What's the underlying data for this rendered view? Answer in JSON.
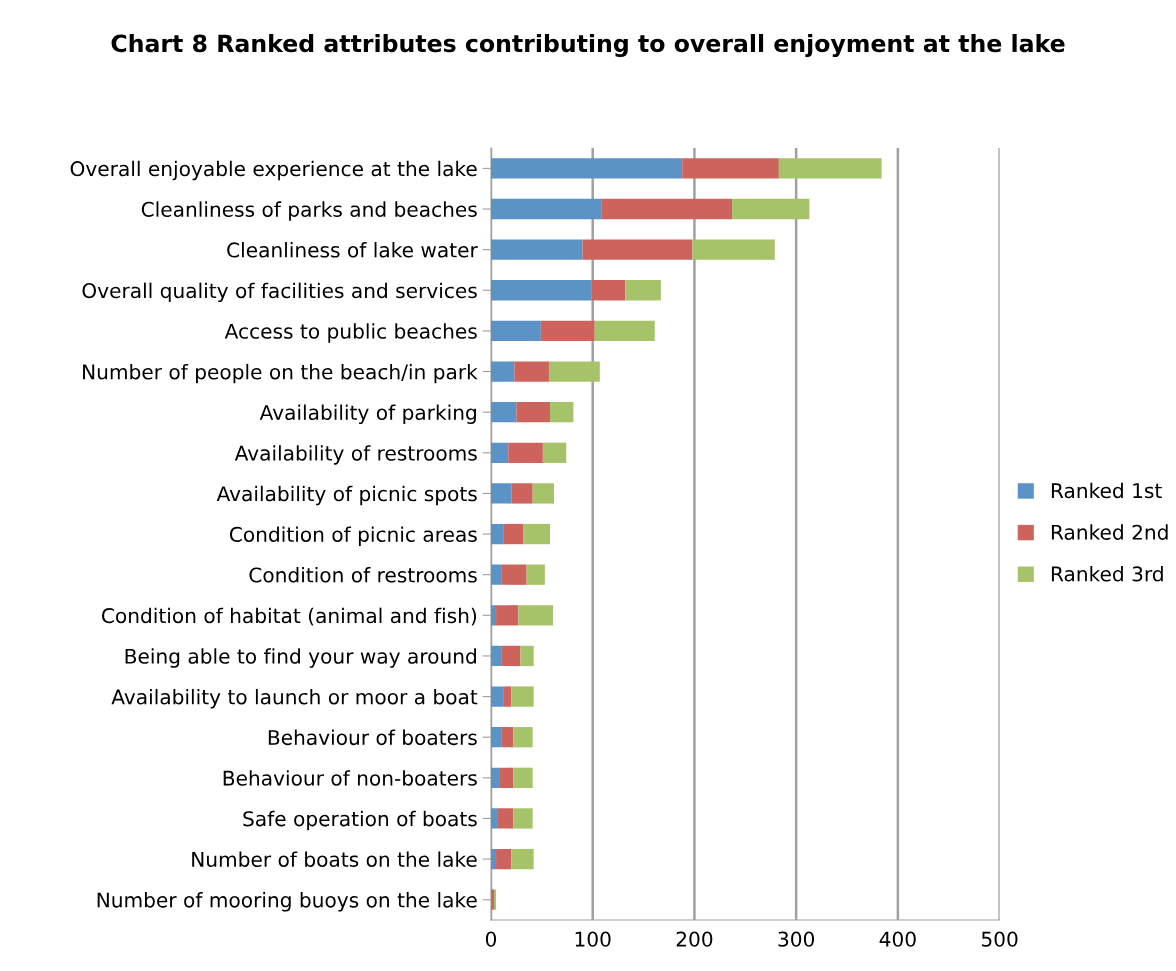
{
  "chart_data": {
    "type": "bar",
    "orientation": "horizontal",
    "stacked": true,
    "title": "Chart 8 Ranked attributes contributing to overall enjoyment at the lake",
    "categories": [
      "Overall enjoyable experience at the lake",
      "Cleanliness of parks and beaches",
      "Cleanliness of lake water",
      "Overall quality of facilities and services",
      "Access to public beaches",
      "Number of people on the beach/in park",
      "Availability of parking",
      "Availability of restrooms",
      "Availability of picnic spots",
      "Condition of picnic areas",
      "Condition of restrooms",
      "Condition of habitat (animal and fish)",
      "Being able to find your way around",
      "Availability to launch or moor a boat",
      "Behaviour of boaters",
      "Behaviour of non-boaters",
      "Safe operation of boats",
      "Number of boats on the lake",
      "Number of mooring buoys on the lake"
    ],
    "series": [
      {
        "name": "Ranked 1st",
        "color": "#5b93c7",
        "values": [
          188,
          109,
          90,
          99,
          49,
          23,
          25,
          17,
          20,
          12,
          10,
          5,
          10,
          12,
          10,
          8,
          6,
          5,
          1
        ]
      },
      {
        "name": "Ranked 2nd",
        "color": "#cd635d",
        "values": [
          95,
          128,
          108,
          33,
          53,
          34,
          33,
          34,
          21,
          20,
          25,
          22,
          19,
          8,
          12,
          14,
          16,
          15,
          2
        ]
      },
      {
        "name": "Ranked 3rd",
        "color": "#a7c36a",
        "values": [
          101,
          76,
          81,
          35,
          59,
          50,
          23,
          23,
          21,
          26,
          18,
          34,
          13,
          22,
          19,
          19,
          19,
          22,
          2
        ]
      }
    ],
    "xlim": [
      0,
      500
    ],
    "xticks": [
      0,
      100,
      200,
      300,
      400,
      500
    ],
    "grid": "x",
    "legend": "right"
  }
}
